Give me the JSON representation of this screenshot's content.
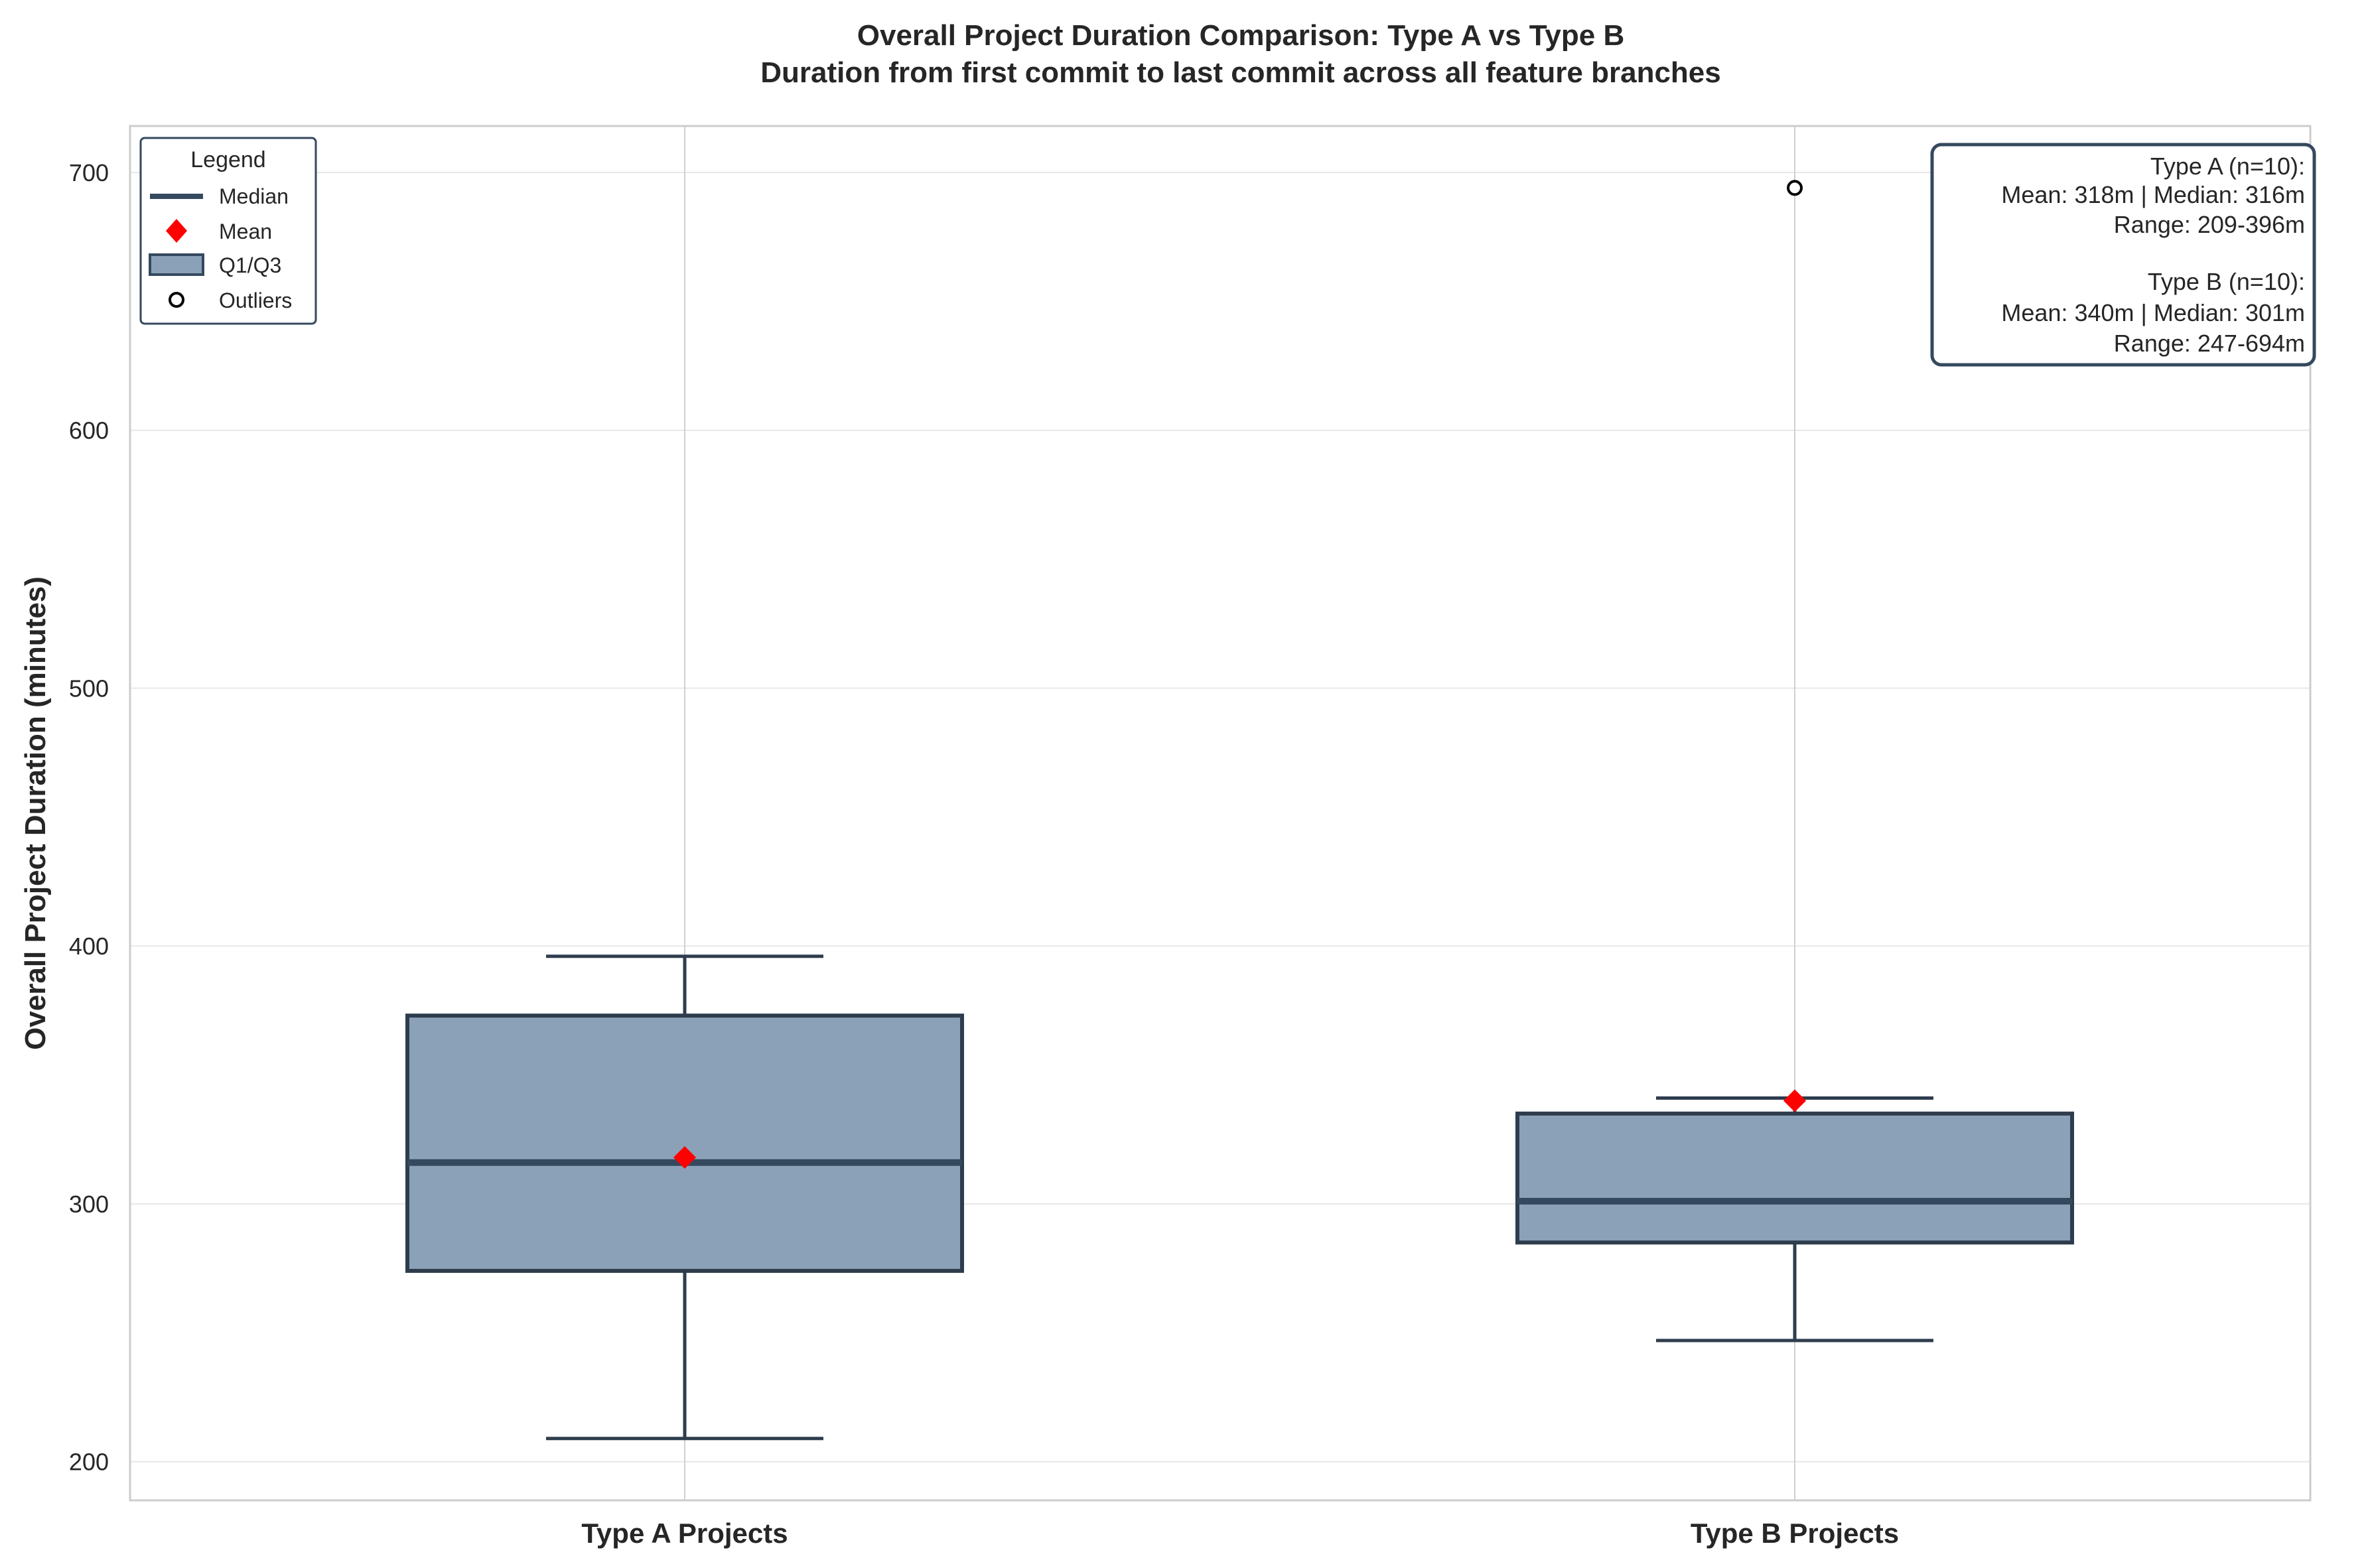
{
  "chart_data": {
    "type": "box",
    "title": "Overall Project Duration Comparison: Type A vs Type B",
    "subtitle": "Duration from first commit to last commit across all feature branches",
    "ylabel": "Overall Project Duration (minutes)",
    "xlabel": "",
    "ylim": [
      185,
      718
    ],
    "yticks": [
      200,
      300,
      400,
      500,
      600,
      700
    ],
    "grid": true,
    "categories": [
      "Type A Projects",
      "Type B Projects"
    ],
    "boxes": [
      {
        "name": "Type A Projects",
        "whisker_low": 209,
        "q1": 274,
        "median": 316,
        "q3": 373,
        "whisker_high": 396,
        "mean": 318,
        "outliers": []
      },
      {
        "name": "Type B Projects",
        "whisker_low": 247,
        "q1": 285,
        "median": 301,
        "q3": 335,
        "whisker_high": 341,
        "mean": 340,
        "outliers": [
          694
        ]
      }
    ],
    "legend": {
      "title": "Legend",
      "placement": "top-left",
      "entries": [
        "Median",
        "Mean",
        "Q1/Q3",
        "Outliers"
      ]
    },
    "stats_box": {
      "placement": "top-right",
      "lines": [
        "Type A (n=10):",
        "Mean: 318m | Median: 316m",
        "Range: 209-396m",
        "",
        "Type B (n=10):",
        "Mean: 340m | Median: 301m",
        "Range: 247-694m"
      ]
    },
    "colors": {
      "box_fill": "#8ba1b8",
      "box_edge": "#2e3d4d",
      "median": "#34495e",
      "mean": "#ff0000",
      "grid": "#e8e8e8",
      "spine": "#cccccc",
      "vgrid": "#d0d0d0"
    }
  }
}
